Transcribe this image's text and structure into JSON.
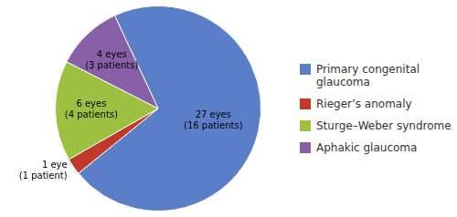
{
  "chart_data": {
    "type": "pie",
    "categories": [
      "Primary congenital\nglaucoma",
      "Rieger’s anomaly",
      "Sturge–Weber syndrome",
      "Aphakic glaucoma"
    ],
    "values": [
      27,
      1,
      6,
      4
    ],
    "colors": [
      "#5b7ec9",
      "#c0392b",
      "#9dc040",
      "#8860a8"
    ],
    "data_labels": true,
    "value_labels": [
      "27 eyes\n(16 patients)",
      "1 eye\n(1 patient)",
      "6 eyes\n(4 patients)",
      "4 eyes\n(3 patients)"
    ],
    "legend": "right"
  }
}
